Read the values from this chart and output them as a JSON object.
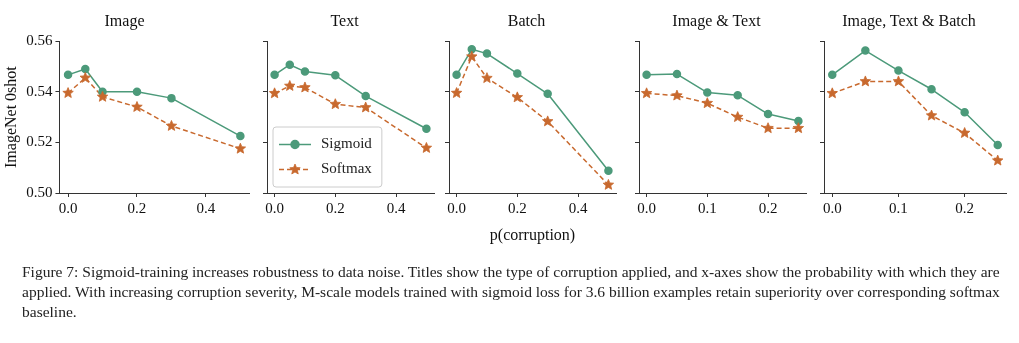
{
  "chart_data": [
    {
      "type": "line",
      "title": "Image",
      "ylabel": "ImageNet 0shot",
      "x": [
        0,
        0.05,
        0.1,
        0.2,
        0.3,
        0.5
      ],
      "xlim": [
        -0.025,
        0.525
      ],
      "xticks": [
        {
          "value": 0,
          "label": "0.0"
        },
        {
          "value": 0.2,
          "label": "0.2"
        },
        {
          "value": 0.4,
          "label": "0.4"
        }
      ],
      "ylim": [
        0.5,
        0.56
      ],
      "yticks": [
        {
          "value": 0.5,
          "label": "0.50"
        },
        {
          "value": 0.52,
          "label": "0.52"
        },
        {
          "value": 0.54,
          "label": "0.54"
        },
        {
          "value": 0.56,
          "label": "0.56"
        }
      ],
      "grid": false,
      "series": [
        {
          "color": "#4c9a7a",
          "marker": "circle",
          "line_style": "solid",
          "values": [
            0.5467,
            0.549,
            0.54,
            0.54,
            0.5375,
            0.5225
          ]
        },
        {
          "color": "#c8692e",
          "marker": "star",
          "line_style": "dashed",
          "values": [
            0.5395,
            0.5455,
            0.538,
            0.534,
            0.5265,
            0.5175
          ]
        }
      ],
      "annotations": [
        "Figure 7: Sigmoid-training increases robustness to data noise. Titles show the type of corruption applied, and x-axes show the probability with which they are applied. With increasing corruption severity, M-scale models trained with sigmoid loss for 3.6 billion examples retain superiority over corresponding softmax baseline."
      ]
    },
    {
      "type": "line",
      "title": "Text",
      "x": [
        0,
        0.05,
        0.1,
        0.2,
        0.3,
        0.5
      ],
      "xlim": [
        -0.025,
        0.525
      ],
      "xticks": [
        {
          "value": 0,
          "label": "0.0"
        },
        {
          "value": 0.2,
          "label": "0.2"
        },
        {
          "value": 0.4,
          "label": "0.4"
        }
      ],
      "ylim": [
        0.5,
        0.56
      ],
      "yticks": [
        {
          "value": 0.5,
          "label": null
        },
        {
          "value": 0.52,
          "label": null
        },
        {
          "value": 0.54,
          "label": null
        },
        {
          "value": 0.56,
          "label": null
        }
      ],
      "tick_labels": "x",
      "grid": false,
      "legend": "bottom left",
      "series": [
        {
          "name": "Sigmoid",
          "color": "#4c9a7a",
          "marker": "circle",
          "line_style": "solid",
          "values": [
            0.5467,
            0.5507,
            0.548,
            0.5465,
            0.5383,
            0.5254
          ]
        },
        {
          "name": "Softmax",
          "color": "#c8692e",
          "marker": "star",
          "line_style": "dashed",
          "values": [
            0.5394,
            0.5423,
            0.5417,
            0.5351,
            0.5338,
            0.5178
          ]
        }
      ]
    },
    {
      "type": "line",
      "title": "Batch",
      "xlabel": "p(corruption)",
      "x": [
        0,
        0.05,
        0.1,
        0.2,
        0.3,
        0.5
      ],
      "xlim": [
        -0.025,
        0.525
      ],
      "xticks": [
        {
          "value": 0,
          "label": "0.0"
        },
        {
          "value": 0.2,
          "label": "0.2"
        },
        {
          "value": 0.4,
          "label": "0.4"
        }
      ],
      "ylim": [
        0.5,
        0.56
      ],
      "yticks": [
        {
          "value": 0.5,
          "label": null
        },
        {
          "value": 0.52,
          "label": null
        },
        {
          "value": 0.54,
          "label": null
        },
        {
          "value": 0.56,
          "label": null
        }
      ],
      "tick_labels": "x",
      "grid": false,
      "series": [
        {
          "color": "#4c9a7a",
          "marker": "circle",
          "line_style": "solid",
          "values": [
            0.5467,
            0.5568,
            0.5551,
            0.5472,
            0.5392,
            0.5088
          ]
        },
        {
          "color": "#c8692e",
          "marker": "star",
          "line_style": "dashed",
          "values": [
            0.5395,
            0.5539,
            0.5454,
            0.5378,
            0.5283,
            0.5032
          ]
        }
      ]
    },
    {
      "type": "line",
      "title": "Image & Text",
      "x": [
        0,
        0.05,
        0.1,
        0.15,
        0.2,
        0.25
      ],
      "xlim": [
        -0.0125,
        0.2625
      ],
      "xticks": [
        {
          "value": 0,
          "label": "0.0"
        },
        {
          "value": 0.1,
          "label": "0.1"
        },
        {
          "value": 0.2,
          "label": "0.2"
        }
      ],
      "ylim": [
        0.5,
        0.56
      ],
      "yticks": [
        {
          "value": 0.5,
          "label": null
        },
        {
          "value": 0.52,
          "label": null
        },
        {
          "value": 0.54,
          "label": null
        },
        {
          "value": 0.56,
          "label": null
        }
      ],
      "tick_labels": "x",
      "grid": false,
      "series": [
        {
          "color": "#4c9a7a",
          "marker": "circle",
          "line_style": "solid",
          "values": [
            0.5467,
            0.547,
            0.5397,
            0.5386,
            0.5312,
            0.5285
          ]
        },
        {
          "color": "#c8692e",
          "marker": "star",
          "line_style": "dashed",
          "values": [
            0.5394,
            0.5385,
            0.5355,
            0.53,
            0.5256,
            0.5256
          ]
        }
      ]
    },
    {
      "type": "line",
      "title": "Image, Text & Batch",
      "x": [
        0,
        0.05,
        0.1,
        0.15,
        0.2,
        0.25
      ],
      "xlim": [
        -0.0125,
        0.2625
      ],
      "xticks": [
        {
          "value": 0,
          "label": "0.0"
        },
        {
          "value": 0.1,
          "label": "0.1"
        },
        {
          "value": 0.2,
          "label": "0.2"
        }
      ],
      "ylim": [
        0.5,
        0.56
      ],
      "yticks": [
        {
          "value": 0.5,
          "label": null
        },
        {
          "value": 0.52,
          "label": null
        },
        {
          "value": 0.54,
          "label": null
        },
        {
          "value": 0.56,
          "label": null
        }
      ],
      "tick_labels": "x",
      "grid": false,
      "series": [
        {
          "color": "#4c9a7a",
          "marker": "circle",
          "line_style": "solid",
          "values": [
            0.5467,
            0.5563,
            0.5484,
            0.541,
            0.5319,
            0.519
          ]
        },
        {
          "color": "#c8692e",
          "marker": "star",
          "line_style": "dashed",
          "values": [
            0.5394,
            0.5441,
            0.5441,
            0.5306,
            0.5237,
            0.5128
          ]
        }
      ]
    }
  ]
}
